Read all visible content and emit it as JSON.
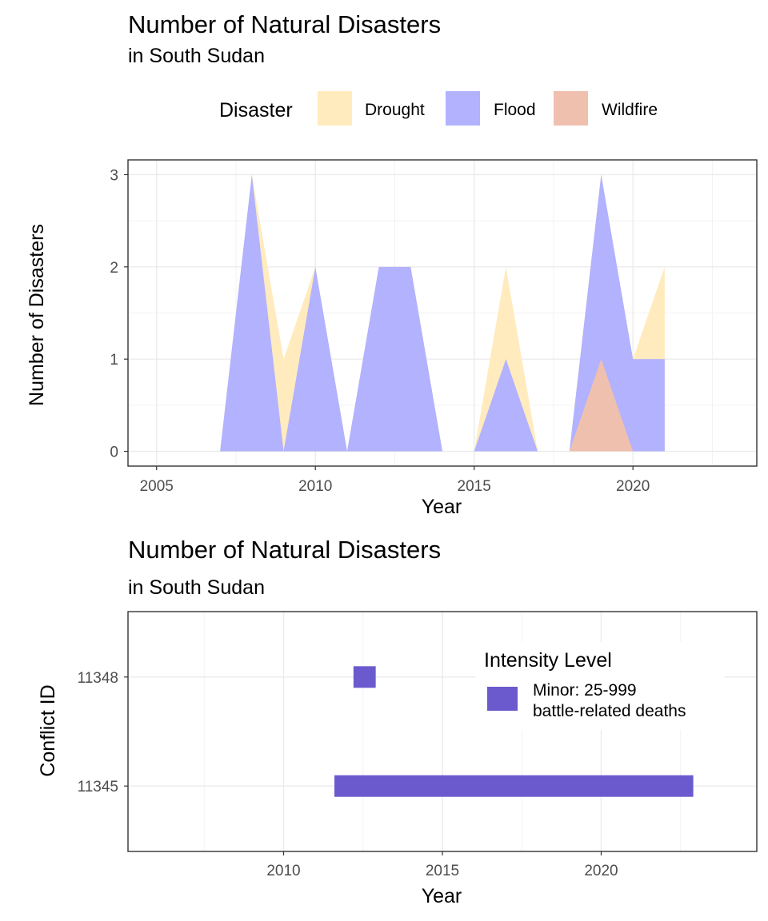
{
  "colors": {
    "Drought": "#FFEBBD",
    "Flood": "#B2B2FF",
    "Wildfire": "#F0C0AF",
    "Minor": "#6A5ACD"
  },
  "chart_data": [
    {
      "type": "area",
      "title": "Number of Natural Disasters",
      "subtitle": "in South Sudan",
      "xlabel": "Year",
      "ylabel": "Number of Disasters",
      "xlim": [
        2004.1,
        2023.9
      ],
      "ylim": [
        -0.16,
        3.16
      ],
      "x_ticks": [
        2005,
        2010,
        2015,
        2020
      ],
      "y_ticks": [
        0,
        1,
        2,
        3
      ],
      "grid": true,
      "legend": {
        "title": "Disaster",
        "position": "top",
        "entries": [
          "Drought",
          "Flood",
          "Wildfire"
        ]
      },
      "series": [
        {
          "name": "Drought",
          "points": [
            [
              2007,
              0
            ],
            [
              2008,
              3
            ],
            [
              2009,
              1
            ],
            [
              2010,
              2
            ],
            [
              2011,
              0
            ],
            [
              2012,
              2
            ],
            [
              2013,
              2
            ],
            [
              2014,
              0
            ],
            [
              2015,
              0
            ],
            [
              2016,
              2
            ],
            [
              2017,
              0
            ],
            [
              2018,
              0
            ],
            [
              2019,
              3
            ],
            [
              2020,
              1
            ],
            [
              2021,
              2
            ]
          ]
        },
        {
          "name": "Flood",
          "points": [
            [
              2007,
              0
            ],
            [
              2008,
              3
            ],
            [
              2009,
              0
            ],
            [
              2010,
              2
            ],
            [
              2011,
              0
            ],
            [
              2012,
              2
            ],
            [
              2013,
              2
            ],
            [
              2014,
              0
            ],
            [
              2015,
              0
            ],
            [
              2016,
              1
            ],
            [
              2017,
              0
            ],
            [
              2018,
              0
            ],
            [
              2019,
              3
            ],
            [
              2020,
              1
            ],
            [
              2021,
              1
            ]
          ]
        },
        {
          "name": "Wildfire",
          "points": [
            [
              2018,
              0
            ],
            [
              2019,
              1
            ],
            [
              2020,
              0
            ]
          ]
        }
      ]
    },
    {
      "type": "bar",
      "title": "Number of Natural Disasters",
      "subtitle": "in South Sudan",
      "xlabel": "Year",
      "ylabel": "Conflict ID",
      "xlim": [
        2005.1,
        2024.9
      ],
      "x_ticks": [
        2010,
        2015,
        2020
      ],
      "categories": [
        "11345",
        "11348"
      ],
      "grid": true,
      "legend": {
        "title": "Intensity Level",
        "position": "inside-top-right",
        "entries": [
          {
            "key": "Minor",
            "label_lines": [
              "Minor: 25-999",
              "battle-related deaths"
            ]
          }
        ]
      },
      "segments": [
        {
          "id": "11348",
          "start": 2012.2,
          "end": 2012.9,
          "intensity": "Minor"
        },
        {
          "id": "11345",
          "start": 2011.6,
          "end": 2022.9,
          "intensity": "Minor"
        }
      ]
    }
  ]
}
